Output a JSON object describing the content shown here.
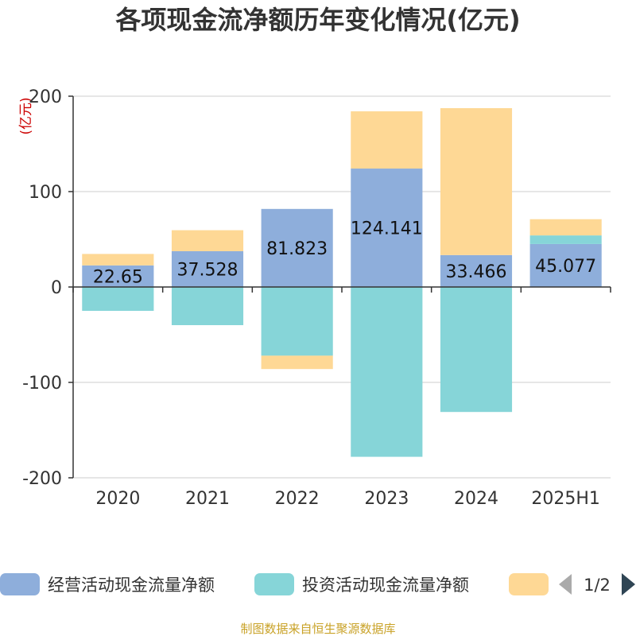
{
  "chart_data": {
    "type": "bar",
    "stacked": true,
    "title": "各项现金流净额历年变化情况(亿元)",
    "unit_label": "(亿元)",
    "categories": [
      "2020",
      "2021",
      "2022",
      "2023",
      "2024",
      "2025H1"
    ],
    "ylim": [
      -200,
      200
    ],
    "yticks": [
      200,
      100,
      0,
      -100,
      -200
    ],
    "grid": true,
    "legend_position": "bottom",
    "series": [
      {
        "name": "经营活动现金流量净额",
        "color": "#8eaedb",
        "values": [
          22.65,
          37.528,
          81.823,
          124.141,
          33.466,
          45.077
        ],
        "labels": [
          "22.65",
          "37.528",
          "81.823",
          "124.141",
          "33.466",
          "45.077"
        ]
      },
      {
        "name": "投资活动现金流量净额",
        "color": "#86d5d8",
        "values": [
          -25,
          -40,
          -72,
          -178,
          -131,
          9
        ]
      },
      {
        "name": "",
        "color": "#fed895",
        "values": [
          12,
          22,
          -14,
          60,
          154,
          17
        ]
      }
    ],
    "legend_page": "1/2",
    "source": "制图数据来自恒生聚源数据库"
  }
}
